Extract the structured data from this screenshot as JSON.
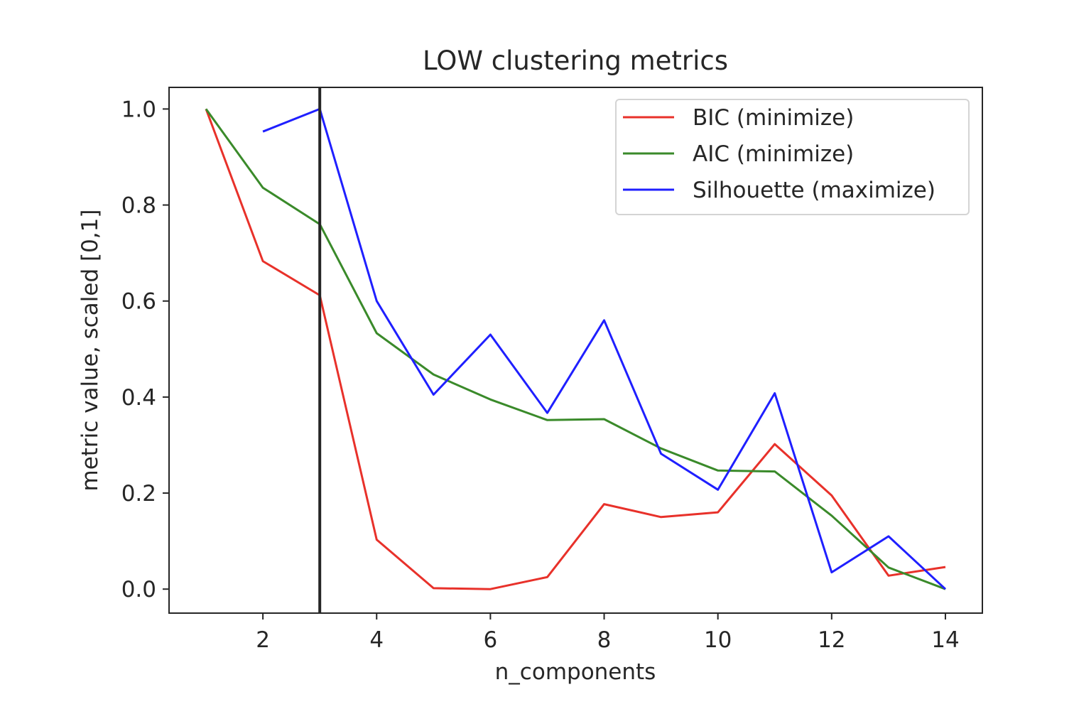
{
  "chart_data": {
    "type": "line",
    "title": "LOW clustering metrics",
    "xlabel": "n_components",
    "ylabel": "metric value, scaled [0,1]",
    "xlim": [
      0.35,
      14.65
    ],
    "ylim": [
      -0.05,
      1.045
    ],
    "xticks": [
      2,
      4,
      6,
      8,
      10,
      12,
      14
    ],
    "yticks": [
      0.0,
      0.2,
      0.4,
      0.6,
      0.8,
      1.0
    ],
    "ytick_labels": [
      "0.0",
      "0.2",
      "0.4",
      "0.6",
      "0.8",
      "1.0"
    ],
    "grid": false,
    "legend_position": "top-right",
    "vline": {
      "x": 3,
      "color": "#262626"
    },
    "series": [
      {
        "name": "BIC (minimize)",
        "color": "#e8312a",
        "x": [
          1,
          2,
          3,
          4,
          5,
          6,
          7,
          8,
          9,
          10,
          11,
          12,
          13,
          14
        ],
        "values": [
          1.0,
          0.683,
          0.612,
          0.103,
          0.002,
          0.0,
          0.025,
          0.177,
          0.15,
          0.16,
          0.302,
          0.195,
          0.028,
          0.046
        ]
      },
      {
        "name": "AIC (minimize)",
        "color": "#3a8a2a",
        "x": [
          1,
          2,
          3,
          4,
          5,
          6,
          7,
          8,
          9,
          10,
          11,
          12,
          13,
          14
        ],
        "values": [
          1.0,
          0.836,
          0.76,
          0.533,
          0.447,
          0.395,
          0.352,
          0.354,
          0.293,
          0.247,
          0.245,
          0.153,
          0.045,
          0.0
        ]
      },
      {
        "name": "Silhouette (maximize)",
        "color": "#1f1fff",
        "x": [
          2,
          3,
          4,
          5,
          6,
          7,
          8,
          9,
          10,
          11,
          12,
          13,
          14
        ],
        "values": [
          0.953,
          1.0,
          0.6,
          0.405,
          0.53,
          0.367,
          0.56,
          0.282,
          0.207,
          0.408,
          0.035,
          0.11,
          0.0
        ]
      }
    ]
  }
}
